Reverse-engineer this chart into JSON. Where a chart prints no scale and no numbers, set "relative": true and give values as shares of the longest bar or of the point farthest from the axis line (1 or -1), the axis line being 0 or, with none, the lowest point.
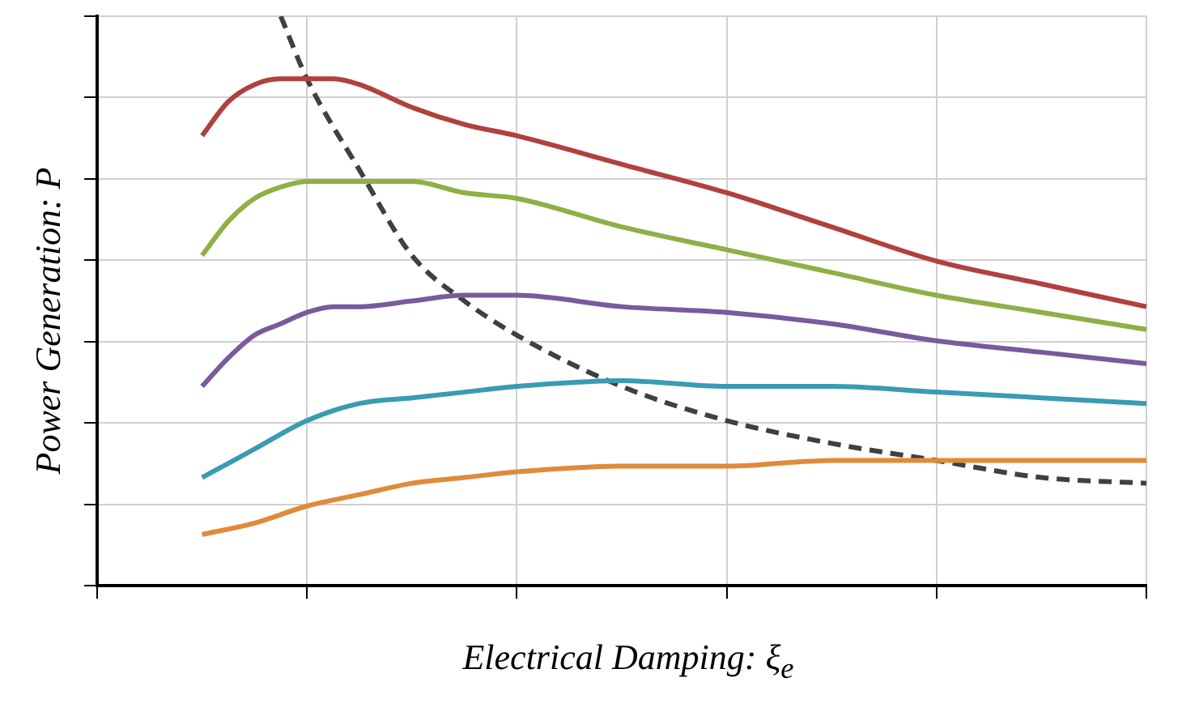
{
  "chart_data": {
    "type": "line",
    "relative": true,
    "xlabel": "Electrical Damping: ξ$_{e}$",
    "ylabel": "Power Generation: P",
    "grid": true,
    "legend": false,
    "marker": "none",
    "categories": [
      null,
      null,
      null,
      null,
      null,
      null,
      null,
      null,
      null,
      null,
      null,
      null,
      null,
      null,
      null,
      null,
      null,
      null,
      null,
      null,
      null,
      null,
      null,
      null,
      null,
      null,
      null,
      null,
      null,
      null,
      null,
      null,
      null,
      null,
      null,
      null,
      null,
      null,
      null,
      null,
      null
    ],
    "series": [
      {
        "color": "#b0413e",
        "values": [
          null,
          null,
          null,
          null,
          0.79,
          0.85,
          0.88,
          0.89,
          0.89,
          0.89,
          0.88,
          null,
          0.84,
          null,
          0.81,
          null,
          0.79,
          null,
          null,
          null,
          0.74,
          null,
          null,
          null,
          0.69,
          null,
          null,
          null,
          0.63,
          null,
          null,
          null,
          0.57,
          null,
          null,
          null,
          0.53,
          null,
          null,
          null,
          0.49
        ]
      },
      {
        "color": "#8faf47",
        "values": [
          null,
          null,
          null,
          null,
          0.58,
          0.64,
          0.68,
          0.7,
          0.71,
          0.71,
          0.71,
          null,
          0.71,
          null,
          0.69,
          null,
          0.68,
          null,
          null,
          null,
          0.63,
          null,
          null,
          null,
          0.59,
          null,
          null,
          null,
          0.55,
          null,
          null,
          null,
          0.51,
          null,
          null,
          null,
          0.48,
          null,
          null,
          null,
          0.45
        ]
      },
      {
        "color": "#7a5a9e",
        "values": [
          null,
          null,
          null,
          null,
          0.35,
          0.4,
          0.44,
          0.46,
          0.48,
          0.49,
          0.49,
          null,
          0.5,
          null,
          0.51,
          null,
          0.51,
          null,
          null,
          null,
          0.49,
          null,
          null,
          null,
          0.48,
          null,
          null,
          null,
          0.46,
          null,
          null,
          null,
          0.43,
          null,
          null,
          null,
          0.41,
          null,
          null,
          null,
          0.39
        ]
      },
      {
        "color": "#3a9bb3",
        "values": [
          null,
          null,
          null,
          null,
          0.19,
          null,
          0.24,
          null,
          0.29,
          null,
          0.32,
          null,
          0.33,
          null,
          0.34,
          null,
          0.35,
          null,
          null,
          null,
          0.36,
          null,
          null,
          null,
          0.35,
          null,
          null,
          null,
          0.35,
          null,
          null,
          null,
          0.34,
          null,
          null,
          null,
          0.33,
          null,
          null,
          null,
          0.32
        ]
      },
      {
        "color": "#e08a3c",
        "values": [
          null,
          null,
          null,
          null,
          0.09,
          null,
          0.11,
          null,
          0.14,
          null,
          0.16,
          null,
          0.18,
          null,
          0.19,
          null,
          0.2,
          null,
          null,
          null,
          0.21,
          null,
          null,
          null,
          0.21,
          null,
          null,
          null,
          0.22,
          null,
          null,
          null,
          0.22,
          null,
          null,
          null,
          0.22,
          null,
          null,
          null,
          0.22
        ]
      },
      {
        "color": "#404040",
        "line_style": "dashed",
        "values": [
          null,
          null,
          null,
          null,
          null,
          null,
          null,
          1,
          0.89,
          null,
          0.73,
          null,
          0.58,
          null,
          0.5,
          null,
          0.44,
          null,
          null,
          null,
          0.35,
          null,
          null,
          null,
          0.29,
          null,
          null,
          null,
          0.25,
          null,
          null,
          null,
          0.22,
          null,
          null,
          null,
          0.19,
          null,
          null,
          null,
          0.18
        ]
      }
    ]
  }
}
